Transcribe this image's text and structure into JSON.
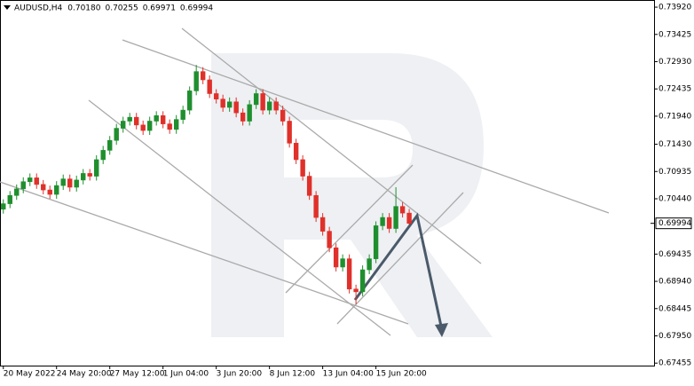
{
  "chart_data": {
    "type": "candlestick",
    "symbol": "AUDUSD,H4",
    "header_ohlc": [
      {
        "value": 0.7018,
        "label": "0.70180"
      },
      {
        "value": 0.70255,
        "label": "0.70255"
      },
      {
        "value": 0.69971,
        "label": "0.69971"
      },
      {
        "value": 0.69994,
        "label": "0.69994"
      }
    ],
    "up_color": "#1f8f2e",
    "down_color": "#e0302a",
    "ylim": [
      0.6741,
      0.7405
    ],
    "xlim": [
      -0.5,
      97.8
    ],
    "yticks": [
      {
        "value": 0.7392,
        "label": "0.73920"
      },
      {
        "value": 0.73425,
        "label": "0.73425"
      },
      {
        "value": 0.7293,
        "label": "0.72930"
      },
      {
        "value": 0.72435,
        "label": "0.72435"
      },
      {
        "value": 0.7194,
        "label": "0.71940"
      },
      {
        "value": 0.7143,
        "label": "0.71430"
      },
      {
        "value": 0.70935,
        "label": "0.70935"
      },
      {
        "value": 0.7044,
        "label": "0.70440"
      },
      {
        "value": 0.69435,
        "label": "0.69435"
      },
      {
        "value": 0.6894,
        "label": "0.68940"
      },
      {
        "value": 0.68445,
        "label": "0.68445"
      },
      {
        "value": 0.6795,
        "label": "0.67950"
      },
      {
        "value": 0.67455,
        "label": "0.67455"
      }
    ],
    "xticks": [
      {
        "value": 0,
        "label": "20 May 2022"
      },
      {
        "value": 8,
        "label": "24 May 20:00"
      },
      {
        "value": 16,
        "label": "27 May 12:00"
      },
      {
        "value": 24,
        "label": "1 Jun 04:00"
      },
      {
        "value": 32,
        "label": "3 Jun 20:00"
      },
      {
        "value": 40,
        "label": "8 Jun 12:00"
      },
      {
        "value": 48,
        "label": "13 Jun 04:00"
      },
      {
        "value": 56,
        "label": "15 Jun 20:00"
      }
    ],
    "last_price": {
      "value": 0.69994,
      "label": "0.69994"
    },
    "candles": [
      [
        0.7025,
        0.7043,
        0.7017,
        0.7035
      ],
      [
        0.7035,
        0.7058,
        0.7027,
        0.705
      ],
      [
        0.705,
        0.707,
        0.7042,
        0.7062
      ],
      [
        0.7062,
        0.7083,
        0.7054,
        0.7075
      ],
      [
        0.7075,
        0.709,
        0.7067,
        0.7082
      ],
      [
        0.7082,
        0.709,
        0.7062,
        0.707
      ],
      [
        0.707,
        0.7078,
        0.7052,
        0.706
      ],
      [
        0.706,
        0.7068,
        0.7044,
        0.7052
      ],
      [
        0.7052,
        0.7076,
        0.7044,
        0.7068
      ],
      [
        0.7068,
        0.7088,
        0.706,
        0.708
      ],
      [
        0.708,
        0.7088,
        0.7057,
        0.7065
      ],
      [
        0.7065,
        0.7086,
        0.7057,
        0.7078
      ],
      [
        0.7078,
        0.7098,
        0.707,
        0.709
      ],
      [
        0.709,
        0.7098,
        0.7077,
        0.7085
      ],
      [
        0.7085,
        0.7123,
        0.7077,
        0.7115
      ],
      [
        0.7115,
        0.714,
        0.7107,
        0.7132
      ],
      [
        0.7132,
        0.7158,
        0.7124,
        0.715
      ],
      [
        0.715,
        0.718,
        0.7142,
        0.7172
      ],
      [
        0.7172,
        0.7193,
        0.7164,
        0.7185
      ],
      [
        0.7185,
        0.72,
        0.7177,
        0.7192
      ],
      [
        0.7192,
        0.72,
        0.717,
        0.7178
      ],
      [
        0.7178,
        0.7186,
        0.716,
        0.7168
      ],
      [
        0.7168,
        0.7193,
        0.716,
        0.7185
      ],
      [
        0.7185,
        0.7203,
        0.7177,
        0.7195
      ],
      [
        0.7195,
        0.7203,
        0.7172,
        0.718
      ],
      [
        0.718,
        0.7188,
        0.7162,
        0.717
      ],
      [
        0.717,
        0.7196,
        0.7162,
        0.7188
      ],
      [
        0.7188,
        0.7213,
        0.718,
        0.7205
      ],
      [
        0.7205,
        0.7248,
        0.7197,
        0.724
      ],
      [
        0.724,
        0.7287,
        0.7232,
        0.7275
      ],
      [
        0.7275,
        0.7283,
        0.7252,
        0.726
      ],
      [
        0.726,
        0.7268,
        0.7227,
        0.7235
      ],
      [
        0.7235,
        0.7243,
        0.7217,
        0.7225
      ],
      [
        0.7225,
        0.7233,
        0.7202,
        0.721
      ],
      [
        0.721,
        0.7228,
        0.7202,
        0.722
      ],
      [
        0.722,
        0.7228,
        0.7192,
        0.72
      ],
      [
        0.72,
        0.7208,
        0.7177,
        0.7185
      ],
      [
        0.7185,
        0.7223,
        0.7177,
        0.7215
      ],
      [
        0.7215,
        0.7243,
        0.7207,
        0.7235
      ],
      [
        0.7235,
        0.7243,
        0.7197,
        0.7205
      ],
      [
        0.7205,
        0.7228,
        0.7197,
        0.722
      ],
      [
        0.722,
        0.7228,
        0.7197,
        0.7205
      ],
      [
        0.7205,
        0.7213,
        0.7177,
        0.7185
      ],
      [
        0.7185,
        0.7193,
        0.7137,
        0.7145
      ],
      [
        0.7145,
        0.7153,
        0.7107,
        0.7115
      ],
      [
        0.7115,
        0.7123,
        0.7077,
        0.7085
      ],
      [
        0.7085,
        0.7093,
        0.7042,
        0.705
      ],
      [
        0.705,
        0.7058,
        0.7002,
        0.701
      ],
      [
        0.701,
        0.7018,
        0.6977,
        0.6985
      ],
      [
        0.6985,
        0.6993,
        0.6947,
        0.6955
      ],
      [
        0.6955,
        0.6963,
        0.6912,
        0.692
      ],
      [
        0.692,
        0.6943,
        0.6912,
        0.6935
      ],
      [
        0.6935,
        0.6943,
        0.6872,
        0.688
      ],
      [
        0.688,
        0.6888,
        0.6852,
        0.6875
      ],
      [
        0.6875,
        0.6923,
        0.6867,
        0.6915
      ],
      [
        0.6915,
        0.6943,
        0.6907,
        0.6935
      ],
      [
        0.6935,
        0.7003,
        0.6927,
        0.6995
      ],
      [
        0.6995,
        0.7018,
        0.6987,
        0.701
      ],
      [
        0.701,
        0.7018,
        0.6982,
        0.699
      ],
      [
        0.699,
        0.7065,
        0.6982,
        0.703
      ],
      [
        0.703,
        0.7038,
        0.701,
        0.7018
      ],
      [
        0.7018,
        0.70255,
        0.69971,
        0.69994
      ]
    ]
  }
}
